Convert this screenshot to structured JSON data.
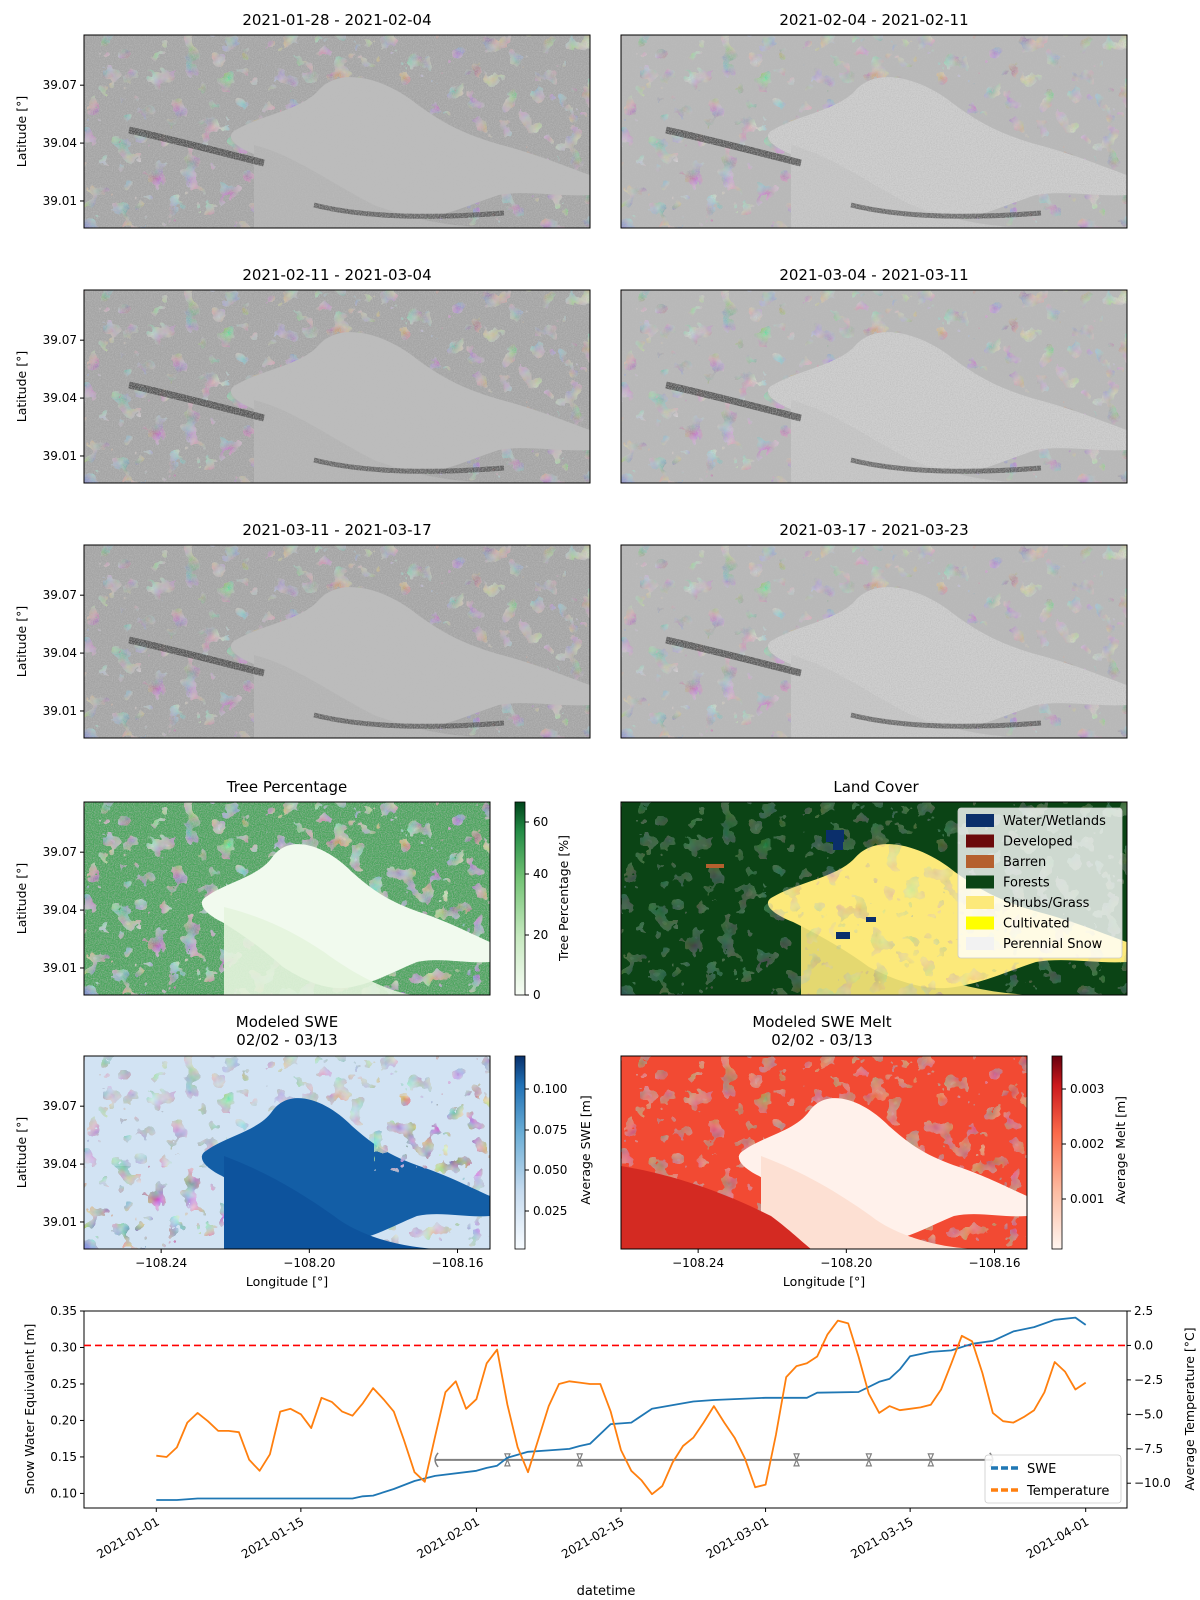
{
  "figure": {
    "sar_titles": [
      "2021-01-28 - 2021-02-04",
      "2021-02-04 - 2021-02-11",
      "2021-02-11 - 2021-03-04",
      "2021-03-04 - 2021-03-11",
      "2021-03-11 - 2021-03-17",
      "2021-03-17 - 2021-03-23"
    ],
    "lat_label": "Latitude [°]",
    "lon_label": "Longitude [°]",
    "lat_ticks": [
      "39.07",
      "39.04",
      "39.01"
    ],
    "lon_ticks": [
      "−108.24",
      "−108.20",
      "−108.16"
    ],
    "tree": {
      "title": "Tree Percentage",
      "cbar_label": "Tree Percentage [%]",
      "cbar_ticks": [
        "60",
        "40",
        "20",
        "0"
      ]
    },
    "landcover": {
      "title": "Land Cover",
      "legend": [
        {
          "label": "Water/Wetlands",
          "color": "#0b2f6b"
        },
        {
          "label": "Developed",
          "color": "#6b0a0a"
        },
        {
          "label": "Barren",
          "color": "#b5602e"
        },
        {
          "label": "Forests",
          "color": "#0b4415"
        },
        {
          "label": "Shrubs/Grass",
          "color": "#fce97a"
        },
        {
          "label": "Cultivated",
          "color": "#ffff00"
        },
        {
          "label": "Perennial Snow",
          "color": "#f2f2f2"
        }
      ]
    },
    "swe": {
      "title1": "Modeled SWE",
      "title2": "02/02 - 03/13",
      "cbar_label": "Average SWE [m]",
      "cbar_ticks": [
        "0.100",
        "0.075",
        "0.050",
        "0.025"
      ]
    },
    "melt": {
      "title1": "Modeled SWE Melt",
      "title2": "02/02 - 03/13",
      "cbar_label": "Average Melt [m]",
      "cbar_ticks": [
        "0.003",
        "0.002",
        "0.001"
      ]
    }
  },
  "chart_data": {
    "type": "line",
    "xlabel": "datetime",
    "ylabel": "Snow Water Equivalent [m]",
    "y2label": "Average Temperature [°C]",
    "x_ticks": [
      "2021-01-01",
      "2021-01-15",
      "2021-02-01",
      "2021-02-15",
      "2021-03-01",
      "2021-03-15",
      "2021-04-01"
    ],
    "y_ticks": [
      "0.35",
      "0.30",
      "0.25",
      "0.20",
      "0.15",
      "0.10"
    ],
    "y2_ticks": [
      "2.5",
      "0.0",
      "−2.5",
      "−5.0",
      "−7.5",
      "−10.0"
    ],
    "ylim": [
      0.08,
      0.35
    ],
    "y2lim": [
      -11.8,
      2.5
    ],
    "legend_position": "lower-right",
    "reference_line": {
      "axis": "y2",
      "value": 0,
      "style": "dashed",
      "color": "#ff0000"
    },
    "acquisition_dates": [
      "2021-01-28",
      "2021-02-04",
      "2021-02-11",
      "2021-03-04",
      "2021-03-11",
      "2021-03-17",
      "2021-03-23"
    ],
    "series": [
      {
        "name": "SWE",
        "axis": "y1",
        "color": "#1f77b4",
        "x": [
          "2021-01-01",
          "2021-01-03",
          "2021-01-05",
          "2021-01-20",
          "2021-01-21",
          "2021-01-22",
          "2021-01-24",
          "2021-01-26",
          "2021-01-28",
          "2021-02-01",
          "2021-02-02",
          "2021-02-03",
          "2021-02-04",
          "2021-02-06",
          "2021-02-08",
          "2021-02-10",
          "2021-02-11",
          "2021-02-12",
          "2021-02-14",
          "2021-02-16",
          "2021-02-18",
          "2021-02-20",
          "2021-02-22",
          "2021-02-24",
          "2021-03-01",
          "2021-03-05",
          "2021-03-06",
          "2021-03-10",
          "2021-03-12",
          "2021-03-13",
          "2021-03-14",
          "2021-03-15",
          "2021-03-17",
          "2021-03-19",
          "2021-03-21",
          "2021-03-23",
          "2021-03-25",
          "2021-03-27",
          "2021-03-29",
          "2021-03-31",
          "2021-04-01"
        ],
        "values": [
          0.091,
          0.091,
          0.093,
          0.093,
          0.096,
          0.097,
          0.106,
          0.117,
          0.124,
          0.131,
          0.135,
          0.138,
          0.149,
          0.157,
          0.159,
          0.161,
          0.165,
          0.168,
          0.195,
          0.197,
          0.216,
          0.221,
          0.226,
          0.228,
          0.231,
          0.231,
          0.238,
          0.239,
          0.253,
          0.257,
          0.27,
          0.288,
          0.294,
          0.296,
          0.305,
          0.309,
          0.322,
          0.328,
          0.338,
          0.341,
          0.331
        ]
      },
      {
        "name": "Temperature",
        "axis": "y2",
        "color": "#ff7f0e",
        "x": [
          "2021-01-01",
          "2021-01-02",
          "2021-01-03",
          "2021-01-04",
          "2021-01-05",
          "2021-01-06",
          "2021-01-07",
          "2021-01-08",
          "2021-01-09",
          "2021-01-10",
          "2021-01-11",
          "2021-01-12",
          "2021-01-13",
          "2021-01-14",
          "2021-01-15",
          "2021-01-16",
          "2021-01-17",
          "2021-01-18",
          "2021-01-19",
          "2021-01-20",
          "2021-01-21",
          "2021-01-22",
          "2021-01-23",
          "2021-01-24",
          "2021-01-25",
          "2021-01-26",
          "2021-01-27",
          "2021-01-28",
          "2021-01-29",
          "2021-01-30",
          "2021-01-31",
          "2021-02-01",
          "2021-02-02",
          "2021-02-03",
          "2021-02-04",
          "2021-02-05",
          "2021-02-06",
          "2021-02-07",
          "2021-02-08",
          "2021-02-09",
          "2021-02-10",
          "2021-02-11",
          "2021-02-12",
          "2021-02-13",
          "2021-02-14",
          "2021-02-15",
          "2021-02-16",
          "2021-02-17",
          "2021-02-18",
          "2021-02-19",
          "2021-02-20",
          "2021-02-21",
          "2021-02-22",
          "2021-02-23",
          "2021-02-24",
          "2021-02-25",
          "2021-02-26",
          "2021-02-27",
          "2021-02-28",
          "2021-03-01",
          "2021-03-02",
          "2021-03-03",
          "2021-03-04",
          "2021-03-05",
          "2021-03-06",
          "2021-03-07",
          "2021-03-08",
          "2021-03-09",
          "2021-03-10",
          "2021-03-11",
          "2021-03-12",
          "2021-03-13",
          "2021-03-14",
          "2021-03-15",
          "2021-03-16",
          "2021-03-17",
          "2021-03-18",
          "2021-03-19",
          "2021-03-20",
          "2021-03-21",
          "2021-03-22",
          "2021-03-23",
          "2021-03-24",
          "2021-03-25",
          "2021-03-26",
          "2021-03-27",
          "2021-03-28",
          "2021-03-29",
          "2021-03-30",
          "2021-03-31",
          "2021-04-01"
        ],
        "values": [
          -8.0,
          -8.1,
          -7.4,
          -5.6,
          -4.9,
          -5.5,
          -6.2,
          -6.2,
          -6.3,
          -8.3,
          -9.1,
          -7.9,
          -4.8,
          -4.6,
          -5.0,
          -6.0,
          -3.8,
          -4.1,
          -4.8,
          -5.1,
          -4.2,
          -3.1,
          -3.9,
          -4.8,
          -6.9,
          -9.2,
          -9.9,
          -6.6,
          -3.4,
          -2.6,
          -4.6,
          -3.9,
          -1.3,
          -0.3,
          -4.3,
          -7.4,
          -9.2,
          -6.8,
          -4.4,
          -2.8,
          -2.6,
          -2.7,
          -2.8,
          -2.8,
          -4.8,
          -7.6,
          -9.1,
          -9.8,
          -10.8,
          -10.2,
          -8.5,
          -7.3,
          -6.7,
          -5.6,
          -4.4,
          -5.6,
          -6.7,
          -8.2,
          -10.3,
          -10.1,
          -6.5,
          -2.3,
          -1.5,
          -1.3,
          -0.8,
          0.8,
          1.8,
          1.6,
          -0.8,
          -3.5,
          -4.9,
          -4.4,
          -4.7,
          -4.6,
          -4.5,
          -4.3,
          -3.2,
          -1.3,
          0.7,
          0.3,
          -2.0,
          -4.9,
          -5.5,
          -5.6,
          -5.2,
          -4.7,
          -3.4,
          -1.2,
          -1.9,
          -3.2,
          -2.7
        ]
      }
    ]
  }
}
